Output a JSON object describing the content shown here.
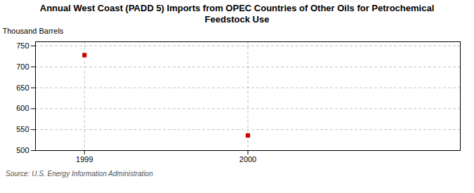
{
  "chart_data": {
    "type": "scatter",
    "title": "Annual West Coast (PADD 5) Imports from OPEC Countries of Other Oils for Petrochemical\nFeedstock Use",
    "ylabel": "Thousand Barrels",
    "source": "Source: U.S. Energy Information Administration",
    "x": [
      1999,
      2000
    ],
    "values": [
      728,
      536
    ],
    "color": "#cc0000",
    "marker": "square",
    "xlim": [
      1998.7,
      2001.3
    ],
    "xticks": [
      1999,
      2000
    ],
    "ylim": [
      500,
      760
    ],
    "yticks": [
      500,
      550,
      600,
      650,
      700,
      750
    ],
    "grid": true
  }
}
